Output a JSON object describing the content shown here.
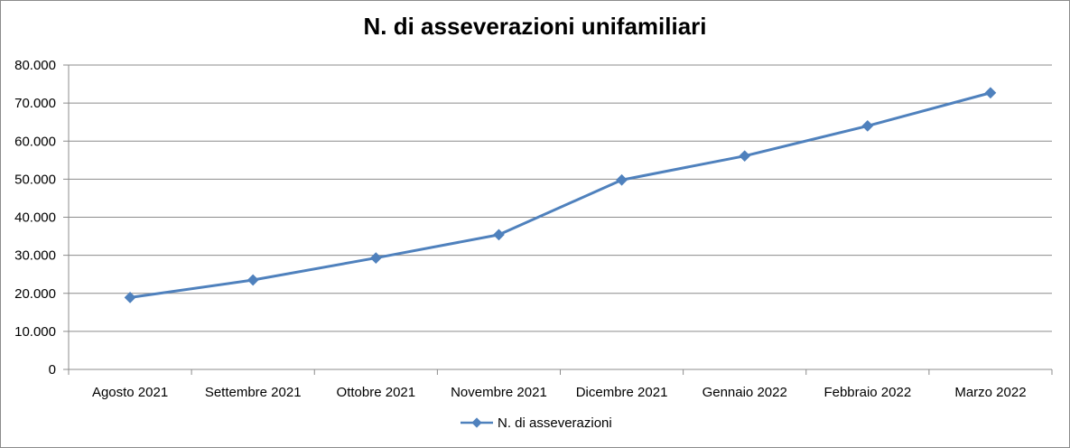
{
  "chart_data": {
    "type": "line",
    "title": "N. di asseverazioni unifamiliari",
    "xlabel": "",
    "ylabel": "",
    "categories": [
      "Agosto 2021",
      "Settembre 2021",
      "Ottobre 2021",
      "Novembre 2021",
      "Dicembre 2021",
      "Gennaio 2022",
      "Febbraio 2022",
      "Marzo 2022"
    ],
    "series": [
      {
        "name": "N. di asseverazioni",
        "values": [
          18900,
          23500,
          29300,
          35400,
          49800,
          56100,
          64000,
          72700
        ],
        "color": "#4f81bd"
      }
    ],
    "ylim": [
      0,
      80000
    ],
    "y_ticks": [
      "0",
      "10.000",
      "20.000",
      "30.000",
      "40.000",
      "50.000",
      "60.000",
      "70.000",
      "80.000"
    ],
    "grid": true,
    "legend_position": "bottom"
  }
}
